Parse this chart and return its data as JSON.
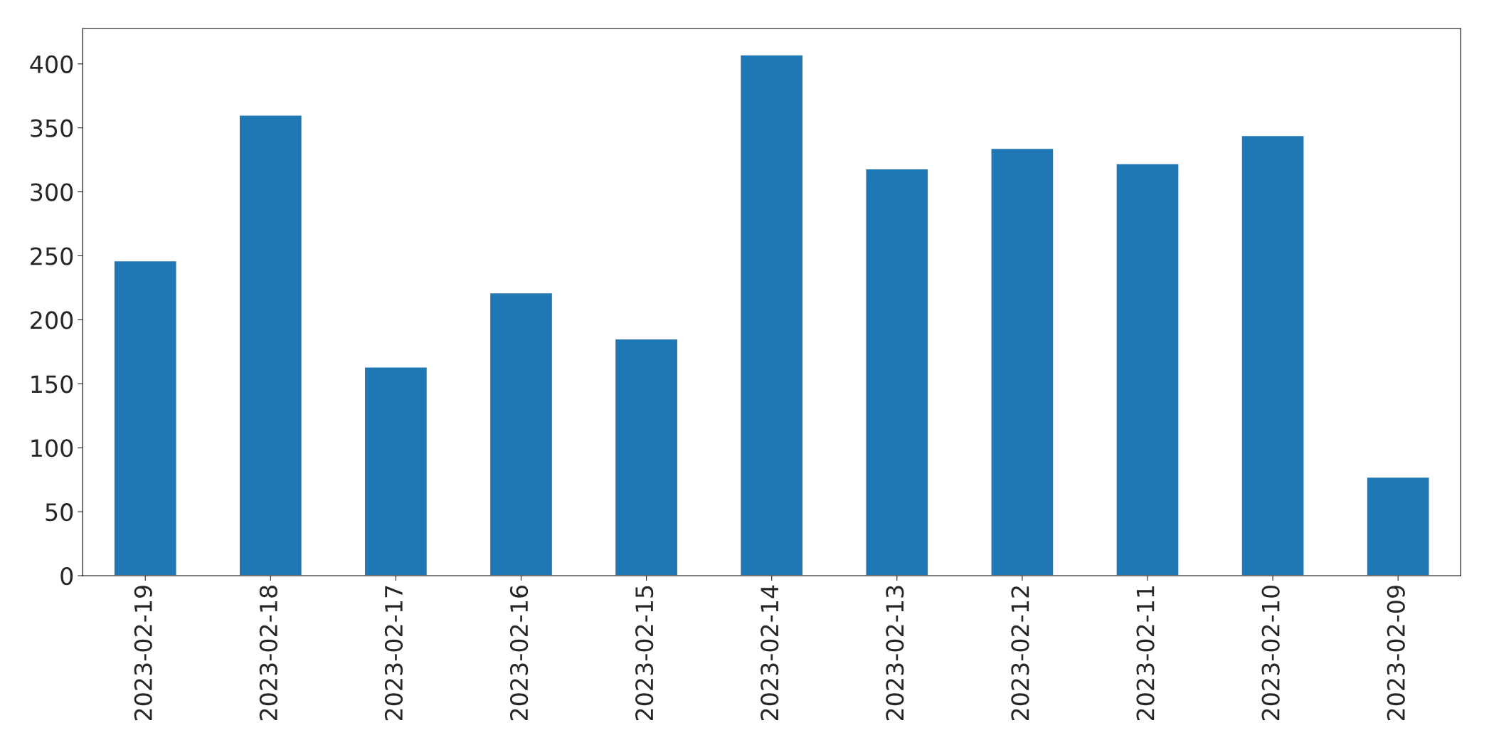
{
  "chart_data": {
    "type": "bar",
    "categories": [
      "2023-02-19",
      "2023-02-18",
      "2023-02-17",
      "2023-02-16",
      "2023-02-15",
      "2023-02-14",
      "2023-02-13",
      "2023-02-12",
      "2023-02-11",
      "2023-02-10",
      "2023-02-09"
    ],
    "values": [
      246,
      360,
      163,
      221,
      185,
      407,
      318,
      334,
      322,
      344,
      77
    ],
    "color": "#1f77b4",
    "ylim": [
      0,
      427.5
    ],
    "yticks": [
      0,
      50,
      100,
      150,
      200,
      250,
      300,
      350,
      400
    ],
    "grid": false,
    "legend": false
  }
}
